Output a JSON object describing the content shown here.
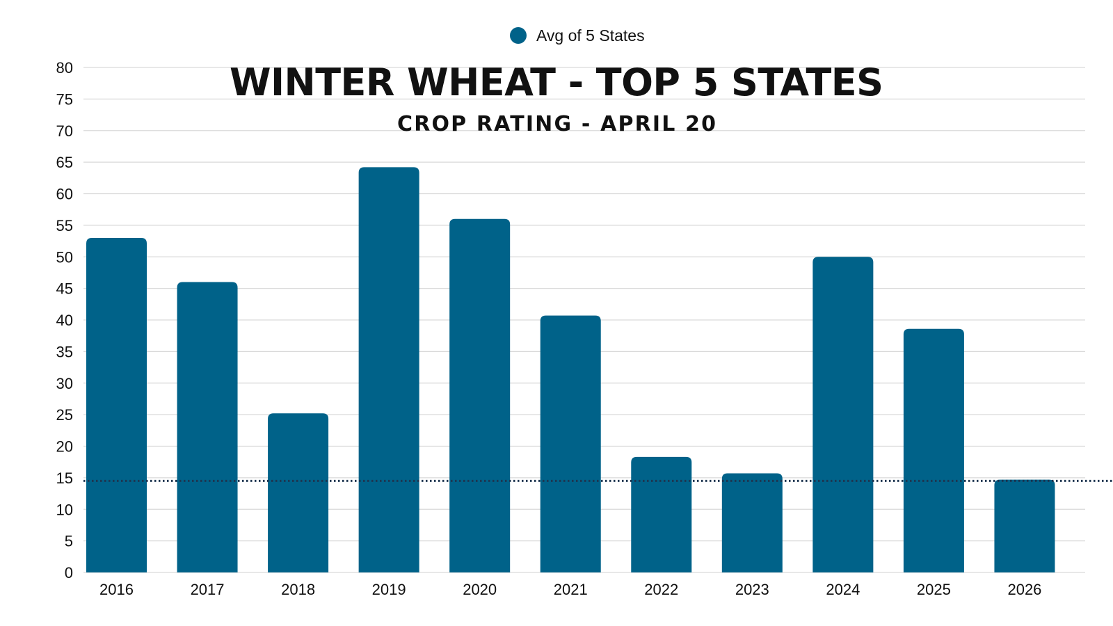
{
  "chart_data": {
    "type": "bar",
    "title": "WINTER WHEAT - TOP 5 STATES",
    "subtitle": "CROP RATING - APRIL 20",
    "xlabel": "",
    "ylabel": "",
    "categories": [
      "2016",
      "2017",
      "2018",
      "2019",
      "2020",
      "2021",
      "2022",
      "2023",
      "2024",
      "2025",
      "2026"
    ],
    "series": [
      {
        "name": "Avg of 5 States",
        "values": [
          53,
          46,
          25.2,
          64.2,
          56,
          40.7,
          18.3,
          15.7,
          50,
          38.6,
          14.7
        ]
      }
    ],
    "ylim": [
      0,
      80
    ],
    "yticks": [
      0,
      5,
      10,
      15,
      20,
      25,
      30,
      35,
      40,
      45,
      50,
      55,
      60,
      65,
      70,
      75,
      80
    ],
    "grid": true,
    "legend_position": "top-center",
    "reference_line": {
      "value": 14.5,
      "style": "dotted"
    },
    "colors": {
      "bar": "#006289",
      "grid": "#d9d9d9",
      "reference_line": "#1d3550",
      "text": "#111111"
    }
  }
}
